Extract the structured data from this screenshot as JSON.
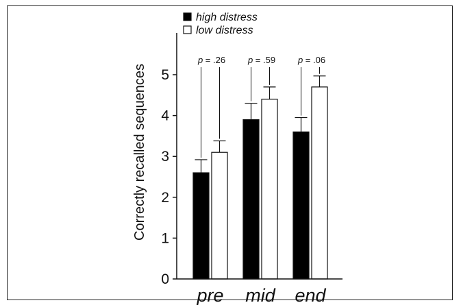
{
  "chart_data": {
    "type": "bar",
    "categories": [
      "pre",
      "mid",
      "end"
    ],
    "series": [
      {
        "name": "high distress",
        "values": [
          2.6,
          3.9,
          3.6
        ],
        "errors": [
          0.32,
          0.4,
          0.35
        ],
        "color": "#000000"
      },
      {
        "name": "low distress",
        "values": [
          3.1,
          4.4,
          4.7
        ],
        "errors": [
          0.28,
          0.3,
          0.27
        ],
        "color": "#ffffff"
      }
    ],
    "annotations": [
      {
        "prefix": "p",
        "text": " = .26",
        "category": "pre"
      },
      {
        "prefix": "p",
        "text": " = .59",
        "category": "mid"
      },
      {
        "prefix": "p",
        "text": " = .06",
        "category": "end"
      }
    ],
    "ylabel": "Correctly recalled sequences",
    "xlabel": "",
    "ylim": [
      0,
      5
    ],
    "yticks": [
      "0",
      "1",
      "2",
      "3",
      "4",
      "5"
    ],
    "legend_position": "top-left",
    "grid": false
  }
}
